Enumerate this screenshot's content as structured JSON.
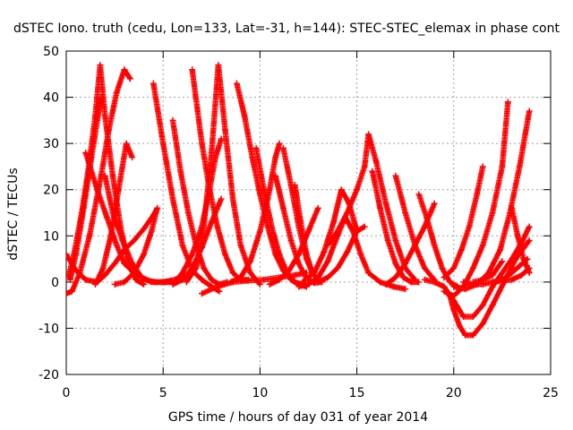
{
  "chart_data": {
    "type": "scatter",
    "title": "dSTEC Iono. truth (cedu, Lon=133, Lat=-31, h=144): STEC-STEC_elemax in phase cont",
    "xlabel": "GPS time / hours of day 031 of year 2014",
    "ylabel": "dSTEC  / TECUs",
    "xlim": [
      0,
      25
    ],
    "ylim": [
      -20,
      50
    ],
    "xticks": [
      0,
      5,
      10,
      15,
      20,
      25
    ],
    "yticks": [
      -20,
      -10,
      0,
      10,
      20,
      30,
      40,
      50
    ],
    "grid": true,
    "marker": "+",
    "color": "#ff0000",
    "series": [
      {
        "x": [
          0.0,
          0.3,
          0.7,
          1.2,
          1.8,
          2.2,
          2.6,
          3.0,
          3.3
        ],
        "y": [
          -2.5,
          -2.0,
          2.0,
          10.0,
          23.0,
          33.0,
          41.0,
          46.0,
          44.0
        ]
      },
      {
        "x": [
          0.0,
          0.5,
          1.0,
          1.6,
          2.0,
          2.5,
          3.0,
          3.5,
          4.0,
          4.5,
          4.7
        ],
        "y": [
          6.0,
          2.5,
          0.5,
          0.0,
          1.5,
          4.0,
          7.0,
          9.0,
          11.5,
          14.5,
          16.0
        ]
      },
      {
        "x": [
          0.1,
          0.4,
          0.8,
          1.2,
          1.5,
          1.75,
          2.0,
          2.4,
          2.8,
          3.2,
          3.6,
          4.0
        ],
        "y": [
          1.0,
          6.0,
          15.0,
          26.0,
          36.0,
          47.0,
          36.0,
          23.0,
          12.0,
          4.0,
          0.5,
          -0.5
        ]
      },
      {
        "x": [
          0.2,
          0.5,
          0.9,
          1.3,
          1.6,
          1.8
        ],
        "y": [
          0.5,
          6.0,
          16.0,
          27.0,
          35.0,
          40.0
        ]
      },
      {
        "x": [
          1.5,
          1.9,
          2.3,
          2.7,
          3.1,
          3.4
        ],
        "y": [
          -0.5,
          3.0,
          10.0,
          20.0,
          30.0,
          27.0
        ]
      },
      {
        "x": [
          1.0,
          1.6,
          2.1,
          2.6,
          3.0,
          3.5,
          4.1,
          4.6,
          5.1,
          5.6,
          6.1
        ],
        "y": [
          28.0,
          20.0,
          14.0,
          8.0,
          4.0,
          2.0,
          0.5,
          0.0,
          0.0,
          0.5,
          1.5
        ]
      },
      {
        "x": [
          2.0,
          2.4,
          2.9,
          3.4,
          3.9,
          4.4,
          4.9,
          5.4
        ],
        "y": [
          23.0,
          15.0,
          9.0,
          4.0,
          1.0,
          0.0,
          0.0,
          0.3
        ]
      },
      {
        "x": [
          2.5,
          3.0,
          3.5,
          4.0,
          4.4,
          4.7
        ],
        "y": [
          -0.5,
          0.0,
          2.0,
          6.0,
          11.0,
          16.0
        ]
      },
      {
        "x": [
          4.5,
          5.0,
          5.5,
          6.0,
          6.5,
          7.0,
          7.5,
          7.9
        ],
        "y": [
          43.0,
          30.0,
          18.0,
          8.0,
          2.5,
          0.5,
          -1.0,
          -2.0
        ]
      },
      {
        "x": [
          5.0,
          5.6,
          6.0,
          6.5,
          7.0,
          7.4,
          7.7,
          8.0
        ],
        "y": [
          0.0,
          0.0,
          2.0,
          6.0,
          12.0,
          20.0,
          27.0,
          31.0
        ]
      },
      {
        "x": [
          5.5,
          5.9,
          6.3,
          6.7,
          7.1,
          7.5,
          7.9,
          8.3
        ],
        "y": [
          35.0,
          24.0,
          15.0,
          8.0,
          3.0,
          0.5,
          -0.5,
          0.0
        ]
      },
      {
        "x": [
          5.5,
          6.0,
          6.5,
          7.0,
          7.5,
          8.0
        ],
        "y": [
          -0.5,
          0.5,
          3.0,
          7.5,
          13.0,
          18.0
        ]
      },
      {
        "x": [
          6.2,
          6.7,
          7.1,
          7.5,
          7.85,
          8.2,
          8.6,
          9.0,
          9.5,
          10.0
        ],
        "y": [
          0.0,
          3.0,
          12.0,
          28.0,
          47.0,
          33.0,
          18.0,
          8.0,
          2.0,
          -0.5
        ]
      },
      {
        "x": [
          6.5,
          7.0,
          7.4,
          7.8,
          8.2,
          8.6,
          9.0,
          9.4
        ],
        "y": [
          46.0,
          30.0,
          20.0,
          12.0,
          6.0,
          2.0,
          0.5,
          0.5
        ]
      },
      {
        "x": [
          7.0,
          7.8,
          8.6,
          9.4,
          10.2,
          11.0,
          11.8,
          12.4
        ],
        "y": [
          -2.5,
          -1.0,
          0.0,
          0.3,
          0.5,
          1.0,
          1.5,
          2.0
        ]
      },
      {
        "x": [
          8.8,
          9.2,
          9.6,
          10.0,
          10.4,
          10.8,
          11.2,
          11.6,
          12.0,
          12.4
        ],
        "y": [
          43.0,
          36.0,
          27.0,
          19.0,
          12.0,
          6.0,
          2.5,
          0.5,
          -0.5,
          -1.0
        ]
      },
      {
        "x": [
          8.5,
          9.0,
          9.5,
          10.0,
          10.4,
          10.8,
          11.0
        ],
        "y": [
          0.0,
          1.0,
          4.5,
          11.0,
          18.0,
          27.0,
          30.0
        ]
      },
      {
        "x": [
          9.8,
          10.2,
          10.6,
          11.0,
          11.4,
          11.8,
          12.2
        ],
        "y": [
          29.0,
          20.0,
          12.0,
          6.0,
          2.0,
          0.0,
          -0.5
        ]
      },
      {
        "x": [
          10.5,
          11.0,
          11.5,
          12.0,
          12.5,
          13.0
        ],
        "y": [
          -0.5,
          0.5,
          2.5,
          6.0,
          11.0,
          16.0
        ]
      },
      {
        "x": [
          10.8,
          11.2,
          11.6,
          12.0,
          12.4,
          12.8,
          13.2
        ],
        "y": [
          23.0,
          16.0,
          9.0,
          4.0,
          0.8,
          -0.2,
          0.0
        ]
      },
      {
        "x": [
          11.2,
          11.6,
          12.0,
          12.4,
          12.7
        ],
        "y": [
          29.0,
          21.0,
          12.0,
          5.0,
          2.0
        ]
      },
      {
        "x": [
          11.8,
          12.1,
          12.4,
          12.7,
          13.0
        ],
        "y": [
          21.0,
          13.0,
          6.0,
          2.0,
          0.5
        ]
      },
      {
        "x": [
          12.0,
          12.5,
          13.0,
          13.5,
          14.0,
          14.4,
          14.8,
          15.2,
          15.6,
          16.2,
          16.9,
          17.5
        ],
        "y": [
          -1.0,
          -0.5,
          1.0,
          4.5,
          10.0,
          14.0,
          11.0,
          6.0,
          2.0,
          0.0,
          -1.0,
          -1.5
        ]
      },
      {
        "x": [
          12.2,
          12.8,
          13.3,
          13.8,
          14.2,
          14.6,
          15.0
        ],
        "y": [
          0.0,
          2.0,
          6.5,
          13.0,
          20.0,
          17.0,
          11.0
        ]
      },
      {
        "x": [
          13.0,
          13.5,
          14.0,
          14.5,
          15.0,
          15.4
        ],
        "y": [
          0.0,
          1.0,
          3.0,
          6.5,
          11.0,
          12.0
        ]
      },
      {
        "x": [
          13.5,
          14.0,
          14.5,
          15.0,
          15.4,
          15.6,
          16.0,
          16.5,
          17.0,
          17.5,
          18.0
        ],
        "y": [
          8.0,
          11.0,
          15.0,
          20.0,
          25.0,
          32.0,
          26.0,
          17.0,
          9.0,
          3.0,
          0.5
        ]
      },
      {
        "x": [
          15.8,
          16.2,
          16.6,
          17.0,
          17.4,
          17.8,
          18.2
        ],
        "y": [
          24.0,
          16.0,
          9.0,
          4.0,
          1.0,
          0.0,
          0.0
        ]
      },
      {
        "x": [
          16.5,
          17.0,
          17.5,
          18.0,
          18.5,
          19.0
        ],
        "y": [
          -0.5,
          1.0,
          4.0,
          8.0,
          12.0,
          17.0
        ]
      },
      {
        "x": [
          17.0,
          17.5,
          18.0,
          18.5,
          19.0
        ],
        "y": [
          23.0,
          15.0,
          8.0,
          3.0,
          0.5
        ]
      },
      {
        "x": [
          18.2,
          18.6,
          19.0,
          19.4,
          19.8,
          20.2
        ],
        "y": [
          19.0,
          14.0,
          8.0,
          3.0,
          0.0,
          -1.0
        ]
      },
      {
        "x": [
          18.5,
          19.0,
          19.5,
          19.8,
          20.0,
          20.3,
          20.6,
          21.0,
          21.5,
          22.0,
          22.6,
          23.2,
          23.9
        ],
        "y": [
          0.5,
          0.0,
          -1.0,
          -3.0,
          -6.0,
          -9.5,
          -11.5,
          -11.5,
          -9.0,
          -5.0,
          0.0,
          5.0,
          9.0
        ]
      },
      {
        "x": [
          19.0,
          19.5,
          20.0,
          20.5,
          21.0,
          21.5,
          22.0,
          22.5,
          23.0,
          23.5,
          23.9
        ],
        "y": [
          0.0,
          -1.0,
          -4.0,
          -7.5,
          -7.5,
          -5.0,
          -1.0,
          2.0,
          5.0,
          8.5,
          12.0
        ]
      },
      {
        "x": [
          19.5,
          20.0,
          20.5,
          21.0,
          21.5,
          22.0,
          22.5,
          22.8
        ],
        "y": [
          -2.0,
          -3.0,
          -1.0,
          3.0,
          8.0,
          15.0,
          25.0,
          39.0
        ]
      },
      {
        "x": [
          19.5,
          20.0,
          20.4,
          20.8,
          21.2,
          21.5
        ],
        "y": [
          1.0,
          3.0,
          7.0,
          12.0,
          19.0,
          25.0
        ]
      },
      {
        "x": [
          20.0,
          20.6,
          21.2,
          21.8,
          22.4,
          22.9,
          23.4,
          23.9
        ],
        "y": [
          -1.0,
          -1.5,
          -0.5,
          2.0,
          7.0,
          15.0,
          25.0,
          37.0
        ]
      },
      {
        "x": [
          20.5,
          21.0,
          21.5,
          22.0,
          22.5,
          23.0,
          23.5,
          23.9
        ],
        "y": [
          0.0,
          -0.5,
          -0.5,
          0.0,
          0.3,
          0.5,
          1.5,
          3.0
        ]
      },
      {
        "x": [
          22.0,
          22.5,
          23.0,
          23.4,
          23.8
        ],
        "y": [
          0.0,
          0.5,
          2.0,
          3.5,
          5.0
        ]
      },
      {
        "x": [
          23.0,
          23.3,
          23.6,
          23.9
        ],
        "y": [
          16.0,
          10.0,
          5.0,
          2.0
        ]
      },
      {
        "x": [
          21.0,
          21.5,
          22.0,
          22.5
        ],
        "y": [
          0.0,
          0.5,
          1.5,
          4.5
        ]
      }
    ]
  }
}
